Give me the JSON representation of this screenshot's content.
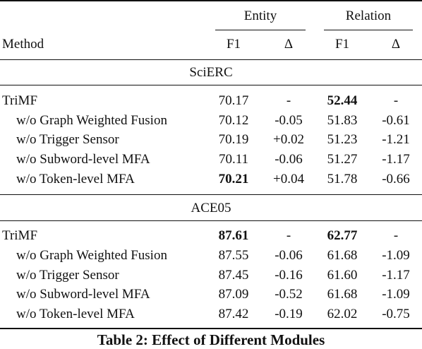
{
  "header": {
    "group_entity": "Entity",
    "group_relation": "Relation",
    "method_label": "Method",
    "col_entity_f1": "F1",
    "col_entity_delta": "Δ",
    "col_relation_f1": "F1",
    "col_relation_delta": "Δ"
  },
  "sections": [
    {
      "name": "SciERC",
      "rows": [
        {
          "method": "TriMF",
          "entity_f1": "70.17",
          "entity_delta": "-",
          "relation_f1": "52.44",
          "relation_delta": "-"
        },
        {
          "method": "w/o Graph Weighted Fusion",
          "entity_f1": "70.12",
          "entity_delta": "-0.05",
          "relation_f1": "51.83",
          "relation_delta": "-0.61"
        },
        {
          "method": "w/o Trigger Sensor",
          "entity_f1": "70.19",
          "entity_delta": "+0.02",
          "relation_f1": "51.23",
          "relation_delta": "-1.21"
        },
        {
          "method": "w/o Subword-level MFA",
          "entity_f1": "70.11",
          "entity_delta": "-0.06",
          "relation_f1": "51.27",
          "relation_delta": "-1.17"
        },
        {
          "method": "w/o Token-level MFA",
          "entity_f1": "70.21",
          "entity_delta": "+0.04",
          "relation_f1": "51.78",
          "relation_delta": "-0.66"
        }
      ]
    },
    {
      "name": "ACE05",
      "rows": [
        {
          "method": "TriMF",
          "entity_f1": "87.61",
          "entity_delta": "-",
          "relation_f1": "62.77",
          "relation_delta": "-"
        },
        {
          "method": "w/o Graph Weighted Fusion",
          "entity_f1": "87.55",
          "entity_delta": "-0.06",
          "relation_f1": "61.68",
          "relation_delta": "-1.09"
        },
        {
          "method": "w/o Trigger Sensor",
          "entity_f1": "87.45",
          "entity_delta": "-0.16",
          "relation_f1": "61.60",
          "relation_delta": "-1.17"
        },
        {
          "method": "w/o Subword-level MFA",
          "entity_f1": "87.09",
          "entity_delta": "-0.52",
          "relation_f1": "61.68",
          "relation_delta": "-1.09"
        },
        {
          "method": "w/o Token-level MFA",
          "entity_f1": "87.42",
          "entity_delta": "-0.19",
          "relation_f1": "62.02",
          "relation_delta": "-0.75"
        }
      ]
    }
  ],
  "caption": "Table 2: Effect of Different Modules"
}
